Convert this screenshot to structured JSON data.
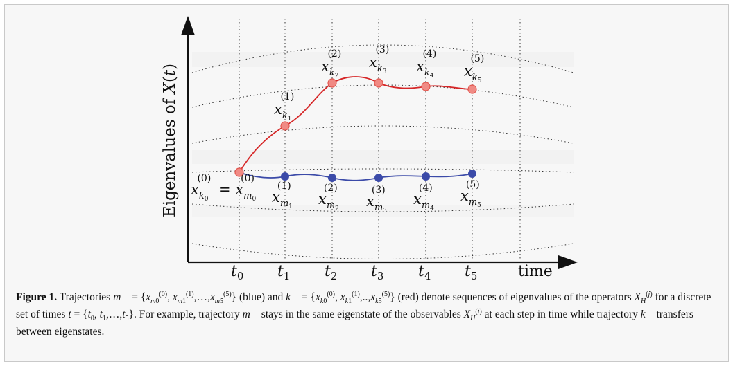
{
  "figure": {
    "y_axis_label": "Eigenvalues of X(t)",
    "x_axis_label": "time",
    "time_labels": [
      "t0",
      "t1",
      "t2",
      "t3",
      "t4",
      "t5"
    ],
    "red_labels": [
      "x_{k1}^{(1)}",
      "x_{k2}^{(2)}",
      "x_{k3}^{(3)}",
      "x_{k4}^{(4)}",
      "x_{k5}^{(5)}"
    ],
    "blue_labels": [
      "x_{k0}^{(0)} = x_{m0}^{(0)}",
      "x_{m1}^{(1)}",
      "x_{m2}^{(2)}",
      "x_{m3}^{(3)}",
      "x_{m4}^{(4)}",
      "x_{m5}^{(5)}"
    ],
    "colors": {
      "red": "#d62728",
      "red_fill": "#f08a84",
      "blue": "#3b4aa8",
      "blue_fill": "#3b4aa8",
      "dotted": "#333333"
    }
  },
  "caption": {
    "label": "Figure 1.",
    "part1": "Trajectories",
    "part2": "(blue) and",
    "part3": "(red) denote sequences of eigenvalues of the operators",
    "part4": "for a discrete set of times",
    "part5": ". For example, trajectory",
    "part6": "stays in the same eigenstate of the observables",
    "part7": "at each step in time while trajectory",
    "part8": "transfers between eigenstates."
  }
}
